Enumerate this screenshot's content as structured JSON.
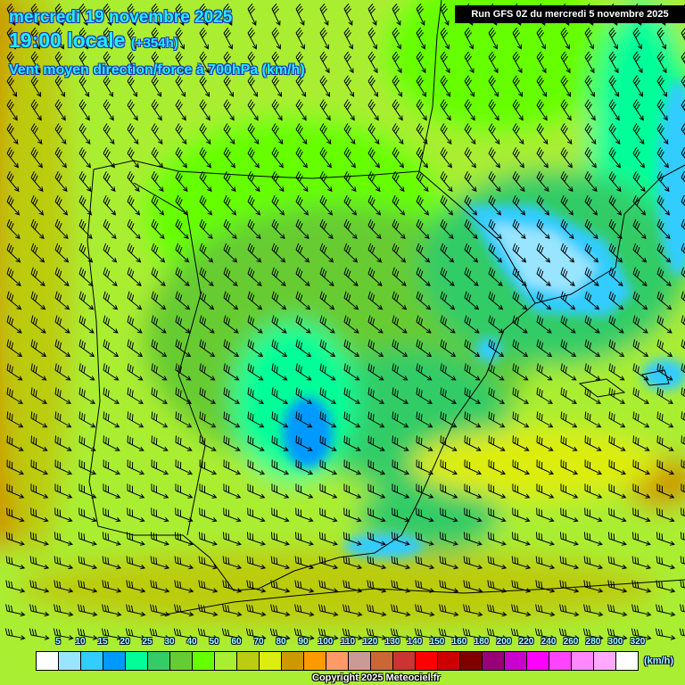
{
  "header": {
    "date": "mercredi 19 novembre 2025",
    "time": "19:00 locale",
    "lead": "(+354h)",
    "parameter": "Vent moyen direction/force à 700hPa (km/h)",
    "run": "Run GFS 0Z du mercredi 5 novembre 2025"
  },
  "legend": {
    "labels": [
      "5",
      "10",
      "15",
      "20",
      "25",
      "30",
      "40",
      "50",
      "60",
      "70",
      "80",
      "90",
      "100",
      "110",
      "120",
      "130",
      "140",
      "150",
      "160",
      "180",
      "200",
      "220",
      "240",
      "260",
      "280",
      "300",
      "320"
    ],
    "colors": [
      "#ffffff",
      "#99e5ff",
      "#33ccff",
      "#0099ff",
      "#00ff99",
      "#33cc66",
      "#66cc33",
      "#66ff00",
      "#aaee33",
      "#bbcc11",
      "#dded11",
      "#cc9900",
      "#ff9900",
      "#ff9966",
      "#cc9999",
      "#cc6633",
      "#cc3333",
      "#ff0000",
      "#cc0000",
      "#800000",
      "#990077",
      "#cc00cc",
      "#ff00ff",
      "#ff44ff",
      "#ff88ff",
      "#ffaaff",
      "#ffffff"
    ],
    "unit": "(km/h)"
  },
  "footer": {
    "copyright": "Copyright 2025 Meteociel.fr"
  }
}
